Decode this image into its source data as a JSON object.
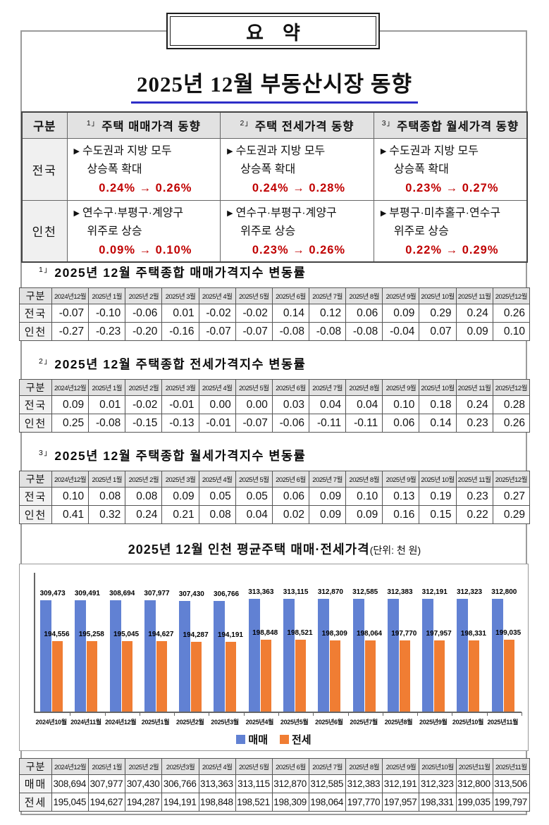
{
  "page": {
    "frame_label": "요    약",
    "title": "2025년 12월 부동산시장 동향"
  },
  "summary_table": {
    "corner": "구분",
    "marker": "▶",
    "columns": [
      {
        "sup": "1」",
        "label": "주택 매매가격 동향"
      },
      {
        "sup": "2」",
        "label": "주택 전세가격 동향"
      },
      {
        "sup": "3」",
        "label": "주택종합 월세가격 동향"
      }
    ],
    "rows": [
      {
        "label": "전국",
        "cells": [
          {
            "line1": "수도권과 지방 모두",
            "line2": "상승폭 확대",
            "value": "0.24% → 0.26%"
          },
          {
            "line1": "수도권과 지방 모두",
            "line2": "상승폭 확대",
            "value": "0.24% → 0.28%"
          },
          {
            "line1": "수도권과 지방 모두",
            "line2": "상승폭 확대",
            "value": "0.23% → 0.27%"
          }
        ]
      },
      {
        "label": "인천",
        "cells": [
          {
            "line1": "연수구·부평구·계양구",
            "line2": "위주로 상승",
            "value": "0.09% → 0.10%"
          },
          {
            "line1": "연수구·부평구·계양구",
            "line2": "위주로 상승",
            "value": "0.23% → 0.26%"
          },
          {
            "line1": "부평구·미추홀구·연수구",
            "line2": "위주로 상승",
            "value": "0.22% → 0.29%"
          }
        ]
      }
    ]
  },
  "index_tables": [
    {
      "sup": "1」",
      "title": "2025년 12월 주택종합 매매가격지수 변동률",
      "corner": "구분",
      "columns": [
        "2024년12월",
        "2025년 1월",
        "2025년 2월",
        "2025년 3월",
        "2025년 4월",
        "2025년 5월",
        "2025년 6월",
        "2025년 7월",
        "2025년 8월",
        "2025년 9월",
        "2025년 10월",
        "2025년 11월",
        "2025년12월"
      ],
      "rows": [
        {
          "label": "전국",
          "values": [
            "-0.07",
            "-0.10",
            "-0.06",
            "0.01",
            "-0.02",
            "-0.02",
            "0.14",
            "0.12",
            "0.06",
            "0.09",
            "0.29",
            "0.24",
            "0.26"
          ]
        },
        {
          "label": "인천",
          "values": [
            "-0.27",
            "-0.23",
            "-0.20",
            "-0.16",
            "-0.07",
            "-0.07",
            "-0.08",
            "-0.08",
            "-0.08",
            "-0.04",
            "0.07",
            "0.09",
            "0.10"
          ]
        }
      ]
    },
    {
      "sup": "2」",
      "title": "2025년 12월 주택종합 전세가격지수 변동률",
      "corner": "구분",
      "columns": [
        "2024년12월",
        "2025년 1월",
        "2025년 2월",
        "2025년 3월",
        "2025년 4월",
        "2025년 5월",
        "2025년 6월",
        "2025년 7월",
        "2025년 8월",
        "2025년 9월",
        "2025년 10월",
        "2025년 11월",
        "2025년12월"
      ],
      "rows": [
        {
          "label": "전국",
          "values": [
            "0.09",
            "0.01",
            "-0.02",
            "-0.01",
            "0.00",
            "0.00",
            "0.03",
            "0.04",
            "0.04",
            "0.10",
            "0.18",
            "0.24",
            "0.28"
          ]
        },
        {
          "label": "인천",
          "values": [
            "0.25",
            "-0.08",
            "-0.15",
            "-0.13",
            "-0.01",
            "-0.07",
            "-0.06",
            "-0.11",
            "-0.11",
            "0.06",
            "0.14",
            "0.23",
            "0.26"
          ]
        }
      ]
    },
    {
      "sup": "3」",
      "title": "2025년 12월 주택종합 월세가격지수 변동률",
      "corner": "구분",
      "columns": [
        "2024년12월",
        "2025년 1월",
        "2025년 2월",
        "2025년 3월",
        "2025년 4월",
        "2025년 5월",
        "2025년 6월",
        "2025년 7월",
        "2025년 8월",
        "2025년 9월",
        "2025년 10월",
        "2025년 11월",
        "2025년12월"
      ],
      "rows": [
        {
          "label": "전국",
          "values": [
            "0.10",
            "0.08",
            "0.08",
            "0.09",
            "0.05",
            "0.05",
            "0.06",
            "0.09",
            "0.10",
            "0.13",
            "0.19",
            "0.23",
            "0.27"
          ]
        },
        {
          "label": "인천",
          "values": [
            "0.41",
            "0.32",
            "0.24",
            "0.21",
            "0.08",
            "0.04",
            "0.02",
            "0.09",
            "0.09",
            "0.16",
            "0.15",
            "0.22",
            "0.29"
          ]
        }
      ]
    }
  ],
  "chart": {
    "title": "2025년 12월 인천 평균주택 매매·전세가격",
    "unit": "(단위: 천 원)"
  },
  "chart_data": {
    "type": "bar",
    "title": "2025년 12월 인천 평균주택 매매·전세가격",
    "unit": "천 원",
    "categories": [
      "2024년10월",
      "2024년11월",
      "2024년12월",
      "2025년1월",
      "2025년2월",
      "2025년3월",
      "2025년4월",
      "2025년5월",
      "2025년6월",
      "2025년7월",
      "2025년8월",
      "2025년9월",
      "2025년10월",
      "2025년11월"
    ],
    "series": [
      {
        "name": "매매",
        "color": "#6181d3",
        "values": [
          309473,
          309491,
          308694,
          307977,
          307430,
          306766,
          313363,
          313115,
          312870,
          312585,
          312383,
          312191,
          312323,
          312800
        ]
      },
      {
        "name": "전세",
        "color": "#f07d33",
        "values": [
          194556,
          195258,
          195045,
          194627,
          194287,
          194191,
          198848,
          198521,
          198309,
          198064,
          197770,
          197957,
          198331,
          199035
        ]
      }
    ],
    "ylim": [
      0,
      385000
    ],
    "grid": false,
    "value_labels": true,
    "legend_position": "bottom"
  },
  "bottom_table": {
    "corner": "구분",
    "columns": [
      "2024년12월",
      "2025년 1월",
      "2025년 2월",
      "2025년3월",
      "2025년 4월",
      "2025년 5월",
      "2025년 6월",
      "2025년 7월",
      "2025년 8월",
      "2025년 9월",
      "2025년10월",
      "2025년11월",
      "2025년11월"
    ],
    "rows": [
      {
        "label": "매매",
        "values": [
          "308,694",
          "307,977",
          "307,430",
          "306,766",
          "313,363",
          "313,115",
          "312,870",
          "312,585",
          "312,383",
          "312,191",
          "312,323",
          "312,800",
          "313,506"
        ]
      },
      {
        "label": "전세",
        "values": [
          "195,045",
          "194,627",
          "194,287",
          "194,191",
          "198,848",
          "198,521",
          "198,309",
          "198,064",
          "197,770",
          "197,957",
          "198,331",
          "199,035",
          "199,797"
        ]
      }
    ]
  }
}
